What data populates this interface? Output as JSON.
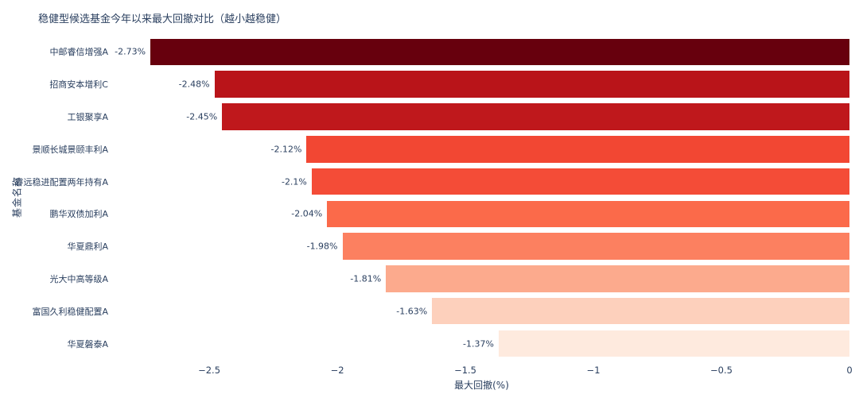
{
  "chart_data": {
    "type": "bar",
    "orientation": "horizontal",
    "title": "稳健型候选基金今年以来最大回撤对比（越小越稳健）",
    "xlabel": "最大回撤(%)",
    "ylabel": "基金名称",
    "categories": [
      "中邮睿信增强A",
      "招商安本增利C",
      "工银聚享A",
      "景顺长城景颐丰利A",
      "睿远稳进配置两年持有A",
      "鹏华双债加利A",
      "华夏鼎利A",
      "光大中高等级A",
      "富国久利稳健配置A",
      "华夏磐泰A"
    ],
    "values": [
      -2.73,
      -2.48,
      -2.45,
      -2.12,
      -2.1,
      -2.04,
      -1.98,
      -1.81,
      -1.63,
      -1.37
    ],
    "labels": [
      "-2.73%",
      "-2.48%",
      "-2.45%",
      "-2.12%",
      "-2.1%",
      "-2.04%",
      "-1.98%",
      "-1.81%",
      "-1.63%",
      "-1.37%"
    ],
    "bar_colors": [
      "#67000d",
      "#b91419",
      "#bf181c",
      "#f24733",
      "#f44c37",
      "#fb6a4a",
      "#fc8060",
      "#fcaa8d",
      "#fdd0bc",
      "#feeade"
    ],
    "xticks": [
      "−2.5",
      "−2",
      "−1.5",
      "−1",
      "−0.5",
      "0"
    ],
    "xtick_values": [
      -2.5,
      -2,
      -1.5,
      -1,
      -0.5,
      0
    ],
    "xlim": [
      -2.873,
      0
    ],
    "grid": false,
    "legend": false,
    "colors": {
      "background": "#ffffff",
      "text": "#2a3f5f"
    }
  }
}
